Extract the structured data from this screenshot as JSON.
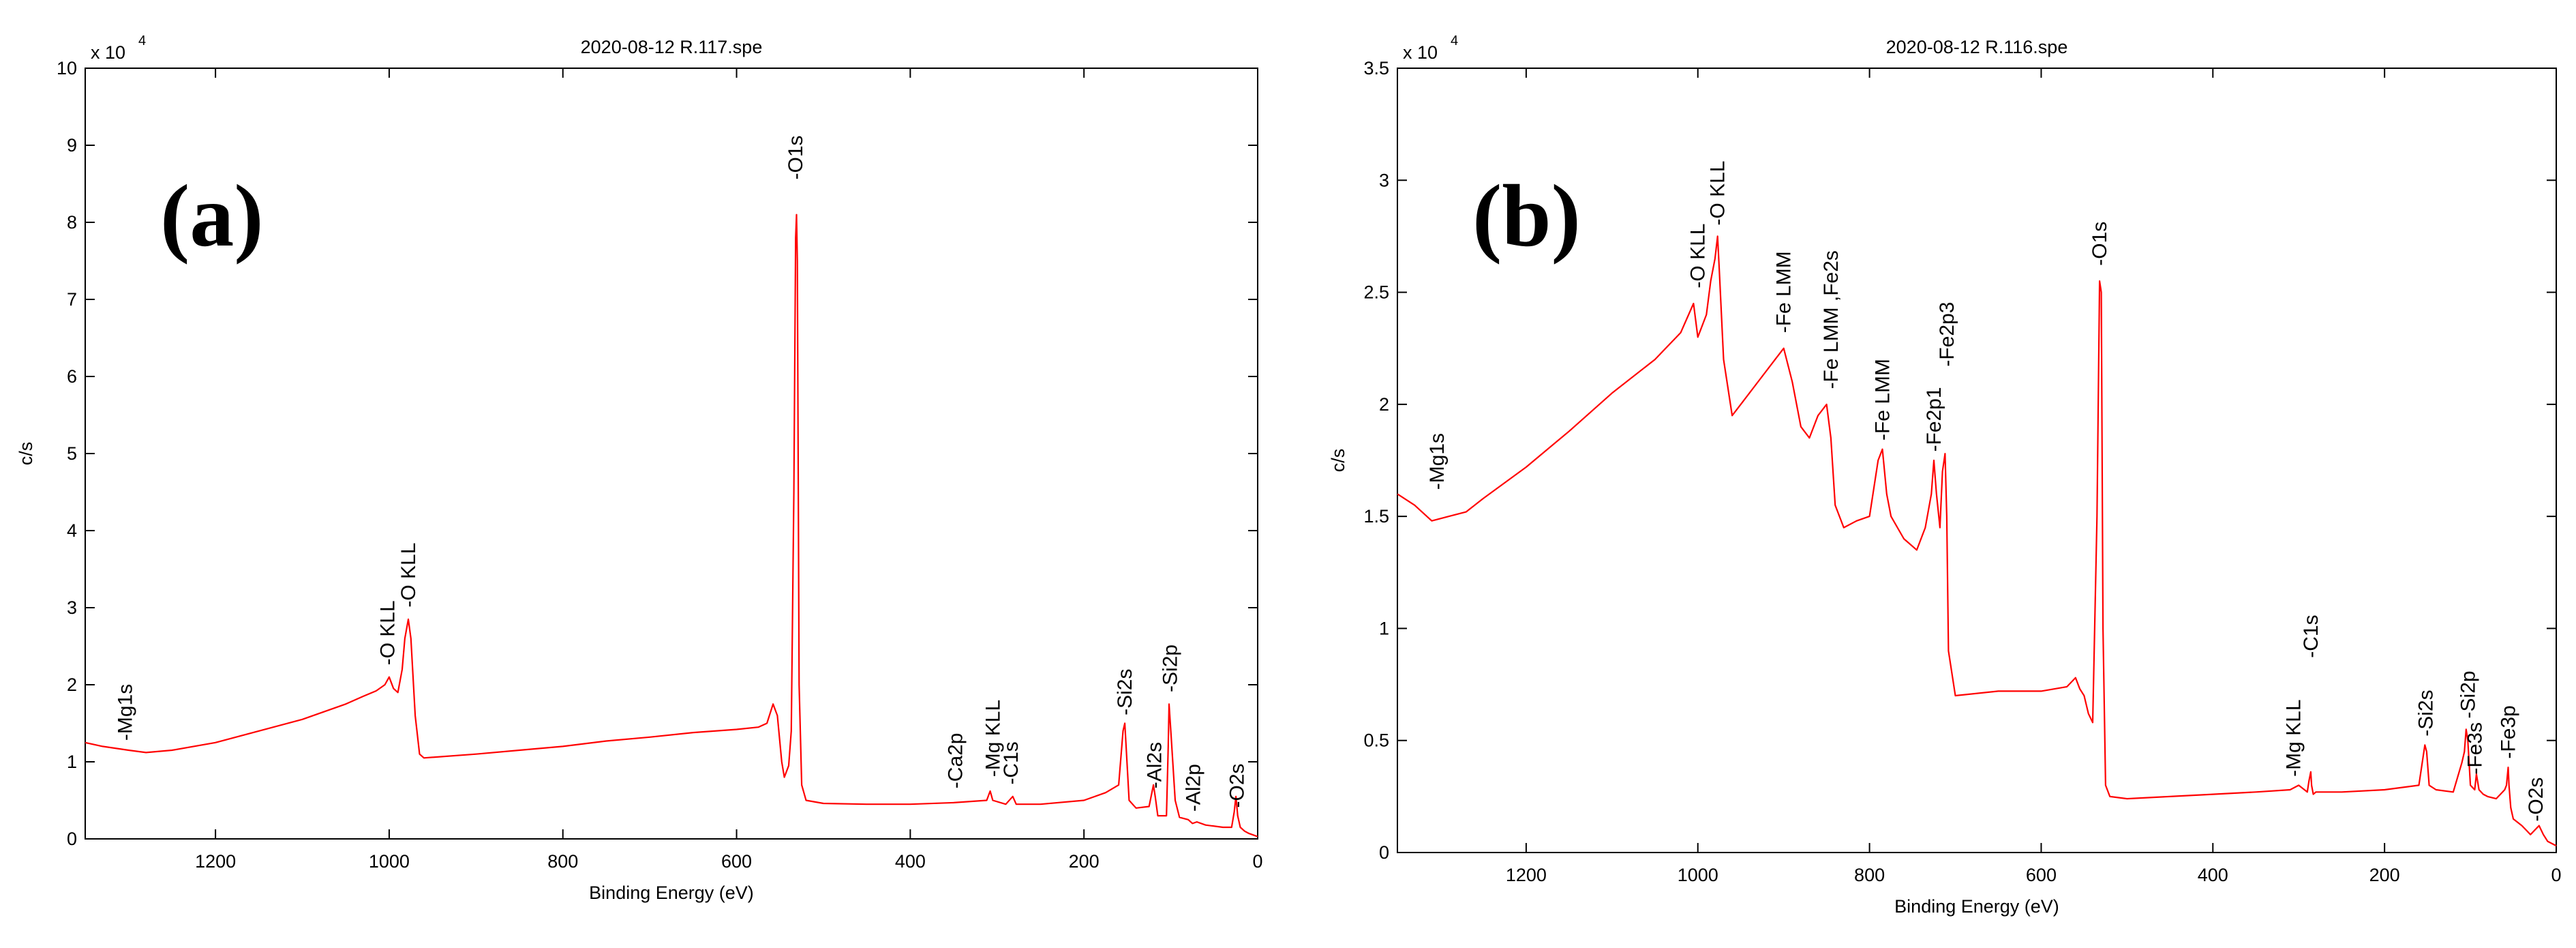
{
  "chart_data": [
    {
      "type": "line",
      "panel_label": "(a)",
      "title": "2020-08-12 R.117.spe",
      "xlabel": "Binding Energy (eV)",
      "ylabel": "c/s",
      "y_exponent_label": "x 10",
      "y_exponent_power": "4",
      "xlim": [
        1350,
        0
      ],
      "ylim": [
        0,
        10
      ],
      "x_ticks": [
        1200,
        1000,
        800,
        600,
        400,
        200,
        0
      ],
      "y_ticks": [
        0,
        1,
        2,
        3,
        4,
        5,
        6,
        7,
        8,
        9,
        10
      ],
      "line_color": "#ff0000",
      "series": [
        {
          "name": "2020-08-12 R.117.spe",
          "x": [
            1350,
            1330,
            1300,
            1280,
            1250,
            1200,
            1150,
            1100,
            1050,
            1030,
            1015,
            1005,
            1000,
            995,
            990,
            985,
            982,
            978,
            975,
            970,
            965,
            960,
            900,
            850,
            800,
            750,
            700,
            650,
            600,
            575,
            565,
            558,
            553,
            548,
            545,
            540,
            537,
            534,
            532,
            531,
            530,
            528,
            525,
            520,
            500,
            450,
            400,
            350,
            312,
            308,
            305,
            290,
            282,
            278,
            250,
            200,
            175,
            160,
            155,
            153,
            150,
            148,
            140,
            125,
            120,
            118,
            115,
            105,
            103,
            102,
            100,
            95,
            90,
            80,
            75,
            70,
            60,
            40,
            30,
            27,
            25,
            23,
            20,
            15,
            10,
            5,
            0
          ],
          "y": [
            1.25,
            1.2,
            1.15,
            1.12,
            1.15,
            1.25,
            1.4,
            1.55,
            1.75,
            1.85,
            1.92,
            2.0,
            2.1,
            1.95,
            1.9,
            2.2,
            2.6,
            2.85,
            2.6,
            1.6,
            1.1,
            1.05,
            1.1,
            1.15,
            1.2,
            1.27,
            1.32,
            1.38,
            1.42,
            1.45,
            1.5,
            1.75,
            1.6,
            1.0,
            0.8,
            0.95,
            1.4,
            4.5,
            7.8,
            8.1,
            7.5,
            2.0,
            0.7,
            0.5,
            0.46,
            0.45,
            0.45,
            0.47,
            0.5,
            0.62,
            0.5,
            0.45,
            0.55,
            0.45,
            0.45,
            0.5,
            0.6,
            0.7,
            1.4,
            1.5,
            0.9,
            0.5,
            0.4,
            0.42,
            0.7,
            0.55,
            0.3,
            0.3,
            1.2,
            1.75,
            1.4,
            0.5,
            0.28,
            0.25,
            0.2,
            0.22,
            0.18,
            0.15,
            0.15,
            0.35,
            0.55,
            0.3,
            0.15,
            0.1,
            0.07,
            0.05,
            0.03
          ]
        }
      ],
      "annotations": [
        {
          "text": "-Mg1s",
          "x": 1304,
          "y": 1.22
        },
        {
          "text": "-O KLL",
          "x": 1002,
          "y": 2.2
        },
        {
          "text": "-O KLL",
          "x": 978,
          "y": 2.95
        },
        {
          "text": "-O1s",
          "x": 532,
          "y": 8.5
        },
        {
          "text": "-Ca2p",
          "x": 348,
          "y": 0.6
        },
        {
          "text": "-Mg KLL",
          "x": 305,
          "y": 0.75
        },
        {
          "text": "-C1s",
          "x": 284,
          "y": 0.65
        },
        {
          "text": "-Si2s",
          "x": 153,
          "y": 1.55
        },
        {
          "text": "-Al2s",
          "x": 119,
          "y": 0.6
        },
        {
          "text": "-Si2p",
          "x": 101,
          "y": 1.85
        },
        {
          "text": "-Al2p",
          "x": 74,
          "y": 0.3
        },
        {
          "text": "-O2s",
          "x": 24,
          "y": 0.35
        }
      ]
    },
    {
      "type": "line",
      "panel_label": "(b)",
      "title": "2020-08-12 R.116.spe",
      "xlabel": "Binding Energy (eV)",
      "ylabel": "c/s",
      "y_exponent_label": "x 10",
      "y_exponent_power": "4",
      "xlim": [
        1350,
        0
      ],
      "ylim": [
        0,
        3.5
      ],
      "x_ticks": [
        1200,
        1000,
        800,
        600,
        400,
        200,
        0
      ],
      "y_ticks": [
        0,
        0.5,
        1,
        1.5,
        2,
        2.5,
        3,
        3.5
      ],
      "line_color": "#ff0000",
      "series": [
        {
          "name": "2020-08-12 R.116.spe",
          "x": [
            1350,
            1330,
            1310,
            1290,
            1270,
            1250,
            1200,
            1150,
            1100,
            1050,
            1020,
            1005,
            1000,
            995,
            990,
            985,
            980,
            977,
            975,
            970,
            960,
            950,
            930,
            910,
            900,
            890,
            880,
            870,
            860,
            850,
            845,
            840,
            835,
            830,
            815,
            800,
            790,
            785,
            780,
            775,
            760,
            745,
            735,
            728,
            725,
            722,
            718,
            715,
            712,
            710,
            708,
            700,
            650,
            600,
            570,
            560,
            555,
            550,
            545,
            540,
            535,
            532,
            530,
            528,
            525,
            520,
            500,
            450,
            400,
            350,
            310,
            300,
            290,
            288,
            286,
            285,
            283,
            280,
            250,
            200,
            160,
            153,
            151,
            148,
            140,
            120,
            110,
            107,
            105,
            103,
            100,
            95,
            93,
            90,
            85,
            80,
            70,
            60,
            58,
            56,
            55,
            53,
            50,
            40,
            35,
            30,
            25,
            20,
            15,
            10,
            5,
            0
          ],
          "y": [
            1.6,
            1.55,
            1.48,
            1.5,
            1.52,
            1.58,
            1.72,
            1.88,
            2.05,
            2.2,
            2.32,
            2.45,
            2.3,
            2.35,
            2.4,
            2.55,
            2.65,
            2.75,
            2.6,
            2.2,
            1.95,
            2.0,
            2.1,
            2.2,
            2.25,
            2.1,
            1.9,
            1.85,
            1.95,
            2.0,
            1.85,
            1.55,
            1.5,
            1.45,
            1.48,
            1.5,
            1.75,
            1.8,
            1.6,
            1.5,
            1.4,
            1.35,
            1.45,
            1.6,
            1.75,
            1.6,
            1.45,
            1.7,
            1.78,
            1.5,
            0.9,
            0.7,
            0.72,
            0.72,
            0.74,
            0.78,
            0.73,
            0.7,
            0.62,
            0.58,
            1.5,
            2.55,
            2.5,
            1.0,
            0.3,
            0.25,
            0.24,
            0.25,
            0.26,
            0.27,
            0.28,
            0.3,
            0.27,
            0.32,
            0.36,
            0.3,
            0.26,
            0.27,
            0.27,
            0.28,
            0.3,
            0.48,
            0.45,
            0.3,
            0.28,
            0.27,
            0.4,
            0.45,
            0.55,
            0.5,
            0.3,
            0.28,
            0.35,
            0.28,
            0.26,
            0.25,
            0.24,
            0.28,
            0.3,
            0.38,
            0.3,
            0.2,
            0.15,
            0.12,
            0.1,
            0.08,
            0.1,
            0.12,
            0.08,
            0.05,
            0.04,
            0.03
          ]
        }
      ],
      "annotations": [
        {
          "text": "-Mg1s",
          "x": 1304,
          "y": 1.6
        },
        {
          "text": "-O KLL",
          "x": 1000,
          "y": 2.5
        },
        {
          "text": "-O KLL",
          "x": 977,
          "y": 2.78
        },
        {
          "text": "-Fe LMM",
          "x": 900,
          "y": 2.3
        },
        {
          "text": "-Fe LMM ,Fe2s",
          "x": 845,
          "y": 2.05
        },
        {
          "text": "-Fe LMM",
          "x": 785,
          "y": 1.82
        },
        {
          "text": "-Fe2p1",
          "x": 725,
          "y": 1.77
        },
        {
          "text": "-Fe2p3",
          "x": 710,
          "y": 2.15
        },
        {
          "text": "-O1s",
          "x": 532,
          "y": 2.6
        },
        {
          "text": "-Mg KLL",
          "x": 306,
          "y": 0.32
        },
        {
          "text": "-C1s",
          "x": 286,
          "y": 0.85
        },
        {
          "text": "-Si2s",
          "x": 152,
          "y": 0.5
        },
        {
          "text": "-Fe3s",
          "x": 95,
          "y": 0.33
        },
        {
          "text": "-Si2p",
          "x": 103,
          "y": 0.58
        },
        {
          "text": "-Fe3p",
          "x": 56,
          "y": 0.4
        },
        {
          "text": "-O2s",
          "x": 24,
          "y": 0.12
        }
      ]
    }
  ]
}
